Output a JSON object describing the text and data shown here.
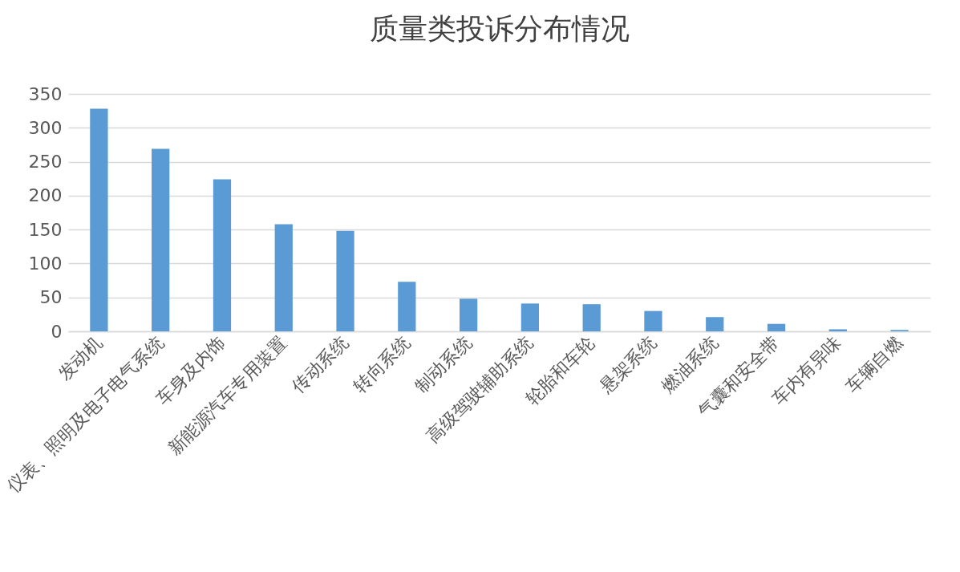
{
  "chart_data": {
    "type": "bar",
    "title": "质量类投诉分布情况",
    "categories": [
      "发动机",
      "仪表、照明及电子电气系统",
      "车身及内饰",
      "新能源汽车专用装置",
      "传动系统",
      "转向系统",
      "制动系统",
      "高级驾驶辅助系统",
      "轮胎和车轮",
      "悬架系统",
      "燃油系统",
      "气囊和安全带",
      "车内有异味",
      "车辆自燃"
    ],
    "values": [
      328,
      269,
      224,
      158,
      148,
      73,
      48,
      41,
      40,
      30,
      21,
      11,
      3,
      2
    ],
    "color": "#5b9bd5",
    "ylim": [
      0,
      350
    ],
    "yticks": [
      0,
      50,
      100,
      150,
      200,
      250,
      300,
      350
    ],
    "grid": "y"
  }
}
